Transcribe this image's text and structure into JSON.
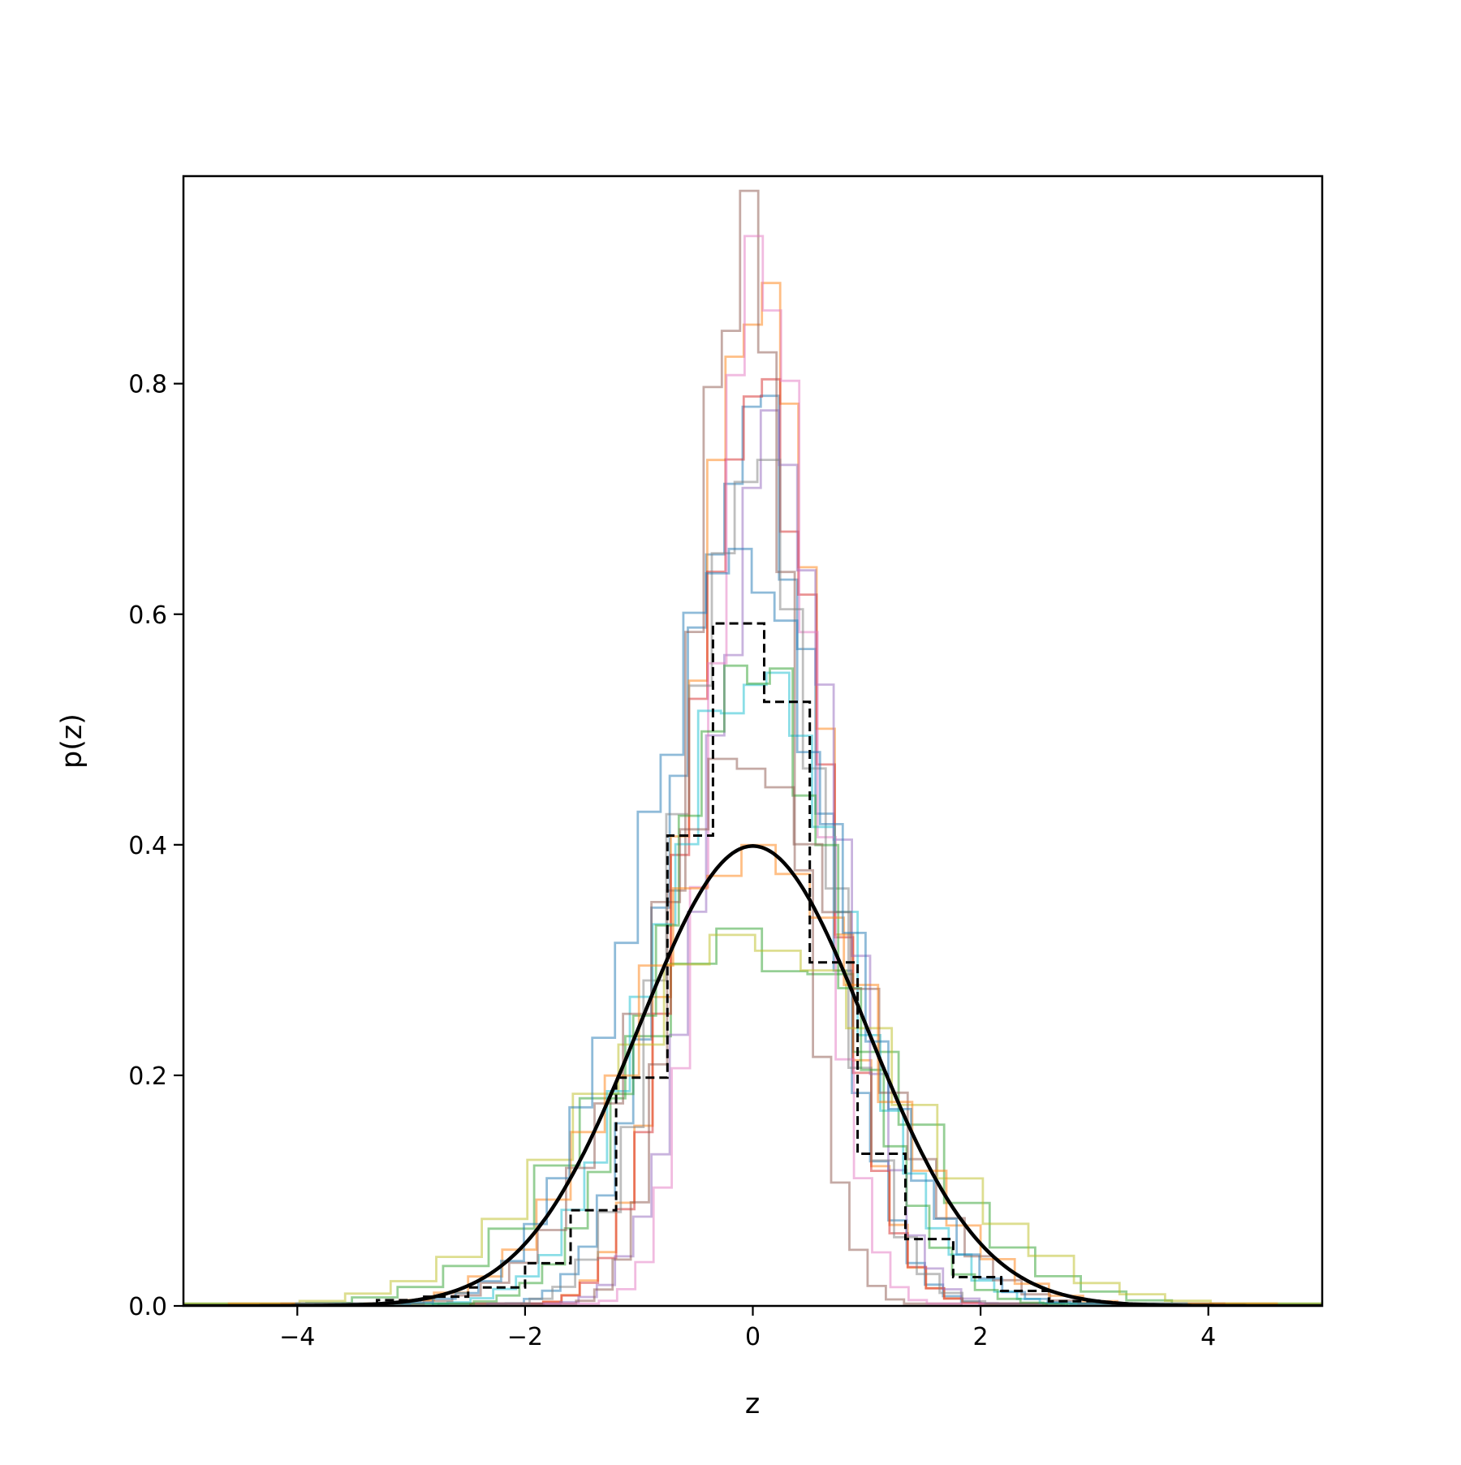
{
  "chart_data": {
    "type": "histogram",
    "title": "",
    "xlabel": "z",
    "ylabel": "p(z)",
    "xlim": [
      -5,
      5
    ],
    "ylim": [
      0,
      0.98
    ],
    "grid": false,
    "legend": "none",
    "x_ticks": [
      -4,
      -2,
      0,
      2,
      4
    ],
    "x_tick_labels": [
      "−4",
      "−2",
      "0",
      "2",
      "4"
    ],
    "y_ticks": [
      0.0,
      0.2,
      0.4,
      0.6,
      0.8
    ],
    "y_tick_labels": [
      "0.0",
      "0.2",
      "0.4",
      "0.6",
      "0.8"
    ],
    "reference_curve": {
      "kind": "standard normal pdf",
      "mu": 0,
      "sigma": 1,
      "color": "#000000"
    },
    "dashed_histogram": {
      "color": "#000000",
      "edges": [
        -3.3,
        -2.9,
        -2.5,
        -2.0,
        -1.6,
        -1.2,
        -0.75,
        -0.35,
        0.1,
        0.5,
        0.92,
        1.34,
        1.76,
        2.18,
        2.6,
        3.0
      ],
      "values": [
        0.005,
        0.008,
        0.016,
        0.037,
        0.083,
        0.198,
        0.408,
        0.592,
        0.524,
        0.298,
        0.132,
        0.058,
        0.025,
        0.013,
        0.004
      ]
    },
    "series": [
      {
        "color": "#1f77b4",
        "center": -0.05,
        "sigma": 0.6,
        "peak": 0.78,
        "bin_width": 0.16,
        "seed": 1
      },
      {
        "color": "#ff7f0e",
        "center": 0.05,
        "sigma": 0.55,
        "peak": 0.86,
        "bin_width": 0.16,
        "seed": 2
      },
      {
        "color": "#2ca02c",
        "center": 0.0,
        "sigma": 1.2,
        "peak": 0.32,
        "bin_width": 0.4,
        "seed": 3
      },
      {
        "color": "#d62728",
        "center": 0.05,
        "sigma": 0.55,
        "peak": 0.81,
        "bin_width": 0.16,
        "seed": 4
      },
      {
        "color": "#9467bd",
        "center": 0.2,
        "sigma": 0.55,
        "peak": 0.75,
        "bin_width": 0.16,
        "seed": 5
      },
      {
        "color": "#8c564b",
        "center": -0.1,
        "sigma": 0.42,
        "peak": 0.92,
        "bin_width": 0.16,
        "seed": 6
      },
      {
        "color": "#e377c2",
        "center": 0.1,
        "sigma": 0.42,
        "peak": 0.93,
        "bin_width": 0.16,
        "seed": 7
      },
      {
        "color": "#7f7f7f",
        "center": 0.0,
        "sigma": 0.6,
        "peak": 0.75,
        "bin_width": 0.2,
        "seed": 8
      },
      {
        "color": "#bcbd22",
        "center": 0.0,
        "sigma": 1.3,
        "peak": 0.31,
        "bin_width": 0.4,
        "seed": 9
      },
      {
        "color": "#17becf",
        "center": 0.0,
        "sigma": 0.8,
        "peak": 0.56,
        "bin_width": 0.2,
        "seed": 10
      },
      {
        "color": "#2ca02c",
        "center": 0.0,
        "sigma": 0.75,
        "peak": 0.56,
        "bin_width": 0.2,
        "seed": 11
      },
      {
        "color": "#8c564b",
        "center": 0.0,
        "sigma": 0.9,
        "peak": 0.47,
        "bin_width": 0.25,
        "seed": 12
      },
      {
        "color": "#ff7f0e",
        "center": 0.0,
        "sigma": 1.0,
        "peak": 0.41,
        "bin_width": 0.3,
        "seed": 13
      },
      {
        "color": "#1f77b4",
        "center": -0.1,
        "sigma": 0.85,
        "peak": 0.65,
        "bin_width": 0.2,
        "seed": 14
      }
    ]
  }
}
